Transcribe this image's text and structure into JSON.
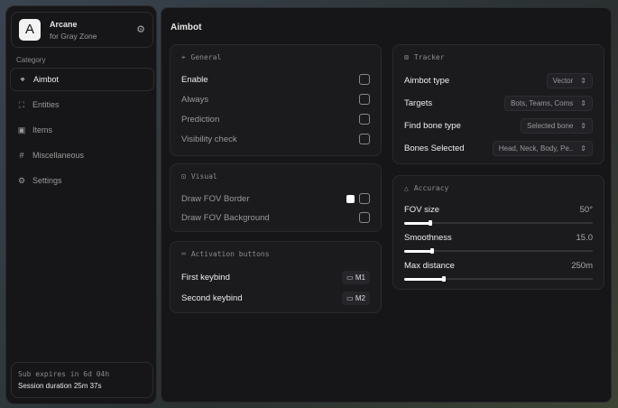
{
  "app": {
    "logo_letter": "A",
    "name": "Arcane",
    "subtitle": "for Gray Zone"
  },
  "sidebar": {
    "category_label": "Category",
    "items": [
      {
        "label": "Aimbot",
        "icon": "crosshair-icon",
        "active": true
      },
      {
        "label": "Entities",
        "icon": "user-scan-icon"
      },
      {
        "label": "Items",
        "icon": "box-icon"
      },
      {
        "label": "Miscellaneous",
        "icon": "hash-icon"
      },
      {
        "label": "Settings",
        "icon": "gear-icon"
      }
    ],
    "sub_expires": "Sub expires in 6d 04h",
    "session": "Session duration 25m 37s"
  },
  "main": {
    "title": "Aimbot",
    "general": {
      "title": "General",
      "items": [
        "Enable",
        "Always",
        "Prediction",
        "Visibility check"
      ]
    },
    "visual": {
      "title": "Visual",
      "items": [
        "Draw FOV Border",
        "Draw FOV Background"
      ],
      "border_color": "#ffffff"
    },
    "activation": {
      "title": "Activation buttons",
      "items": [
        {
          "label": "First keybind",
          "key": "M1"
        },
        {
          "label": "Second keybind",
          "key": "M2"
        }
      ]
    },
    "tracker": {
      "title": "Tracker",
      "items": [
        {
          "label": "Aimbot type",
          "value": "Vector"
        },
        {
          "label": "Targets",
          "value": "Bots, Teams, Coms"
        },
        {
          "label": "Find bone type",
          "value": "Selected bone"
        },
        {
          "label": "Bones Selected",
          "value": "Head, Neck, Body, Pe.."
        }
      ]
    },
    "accuracy": {
      "title": "Accuracy",
      "sliders": [
        {
          "label": "FOV size",
          "value": "50°",
          "fraction": 0.14
        },
        {
          "label": "Smoothness",
          "value": "15.0",
          "fraction": 0.15
        },
        {
          "label": "Max distance",
          "value": "250m",
          "fraction": 0.21
        }
      ]
    }
  }
}
